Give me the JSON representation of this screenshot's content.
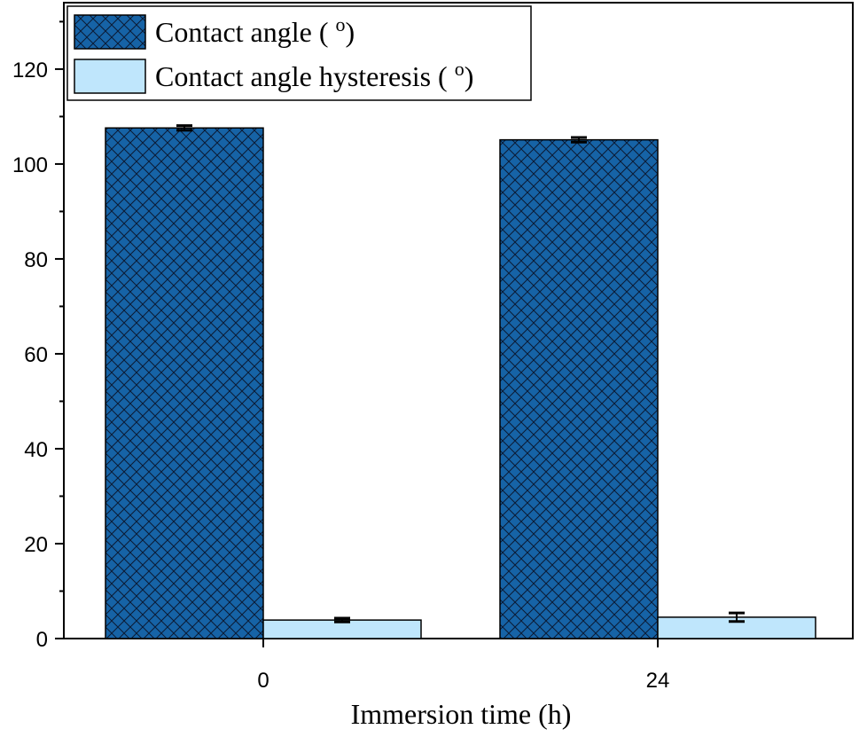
{
  "chart_data": {
    "type": "bar",
    "categories": [
      "0",
      "24"
    ],
    "series": [
      {
        "name": "Contact angle ( ",
        "name_sup": "o",
        "name_end": ")",
        "values": [
          107.6,
          105.1
        ],
        "errors": [
          0.5,
          0.5
        ],
        "color": "#1663A6",
        "pattern": "crosshatch"
      },
      {
        "name": "Contact angle hysteresis ( ",
        "name_sup": "o",
        "name_end": ")",
        "values": [
          3.9,
          4.5
        ],
        "errors": [
          0.4,
          0.9
        ],
        "color": "#BFE6FC",
        "pattern": "none"
      }
    ],
    "xlabel": "Immersion time (h)",
    "ylabel": "",
    "ylim": [
      0,
      134
    ],
    "yticks": [
      0,
      20,
      40,
      60,
      80,
      100,
      120
    ],
    "legend_position": "top-left",
    "grid": false
  }
}
